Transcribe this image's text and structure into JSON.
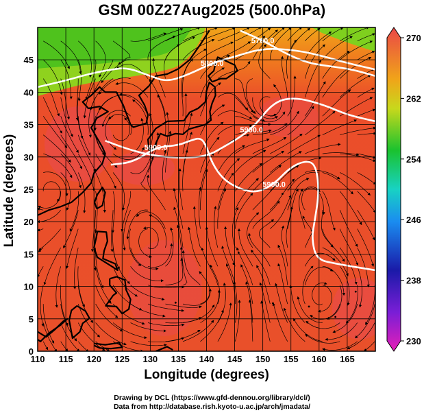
{
  "title": "GSM 00Z27Aug2025 (500.0hPa)",
  "xlabel": "Longitude (degrees)",
  "ylabel": "Latitude  (degrees)",
  "credits": [
    "Drawing by DCL (https://www.gfd-dennou.org/library/dcl/)",
    "Data from http://database.rish.kyoto-u.ac.jp/arch/jmadata/"
  ],
  "x_ticks": [
    "110",
    "115",
    "120",
    "125",
    "130",
    "135",
    "140",
    "145",
    "150",
    "155",
    "160",
    "165"
  ],
  "y_ticks": [
    "0",
    "5",
    "10",
    "15",
    "20",
    "25",
    "30",
    "35",
    "40",
    "45"
  ],
  "colorbar_ticks": [
    "230",
    "238",
    "246",
    "254",
    "262",
    "270"
  ],
  "contour_labels": [
    "5700.0",
    "5800.0",
    "5900.0",
    "5900.0",
    "5900.0"
  ],
  "chart_data": {
    "type": "heatmap",
    "title": "GSM 00Z27Aug2025 (500.0hPa)",
    "xlabel": "Longitude (degrees)",
    "ylabel": "Latitude  (degrees)",
    "xlim": [
      110,
      170
    ],
    "ylim": [
      0,
      50
    ],
    "colorbar": {
      "min": 230,
      "max": 270,
      "ticks": [
        230,
        238,
        246,
        254,
        262,
        270
      ]
    },
    "colors": {
      "warm_field": "#e8532a",
      "cool_field": "#4fc21d",
      "contour": "#ffffff",
      "coastline": "#000000"
    },
    "contours": [
      {
        "value": "5700.0",
        "points": [
          [
            146,
            49.5
          ],
          [
            150,
            48
          ],
          [
            154,
            46
          ],
          [
            158,
            44.5
          ],
          [
            162,
            44
          ],
          [
            166,
            43.5
          ],
          [
            170,
            42.5
          ]
        ]
      },
      {
        "value": "5800.0",
        "points": [
          [
            110,
            40.8
          ],
          [
            115,
            41.8
          ],
          [
            119,
            42.8
          ],
          [
            123,
            43.5
          ],
          [
            126,
            43.8
          ],
          [
            130,
            42.5
          ],
          [
            133,
            41.6
          ],
          [
            137,
            42.8
          ],
          [
            141,
            44.5
          ],
          [
            145,
            45.5
          ],
          [
            150,
            46.8
          ],
          [
            156,
            46.5
          ],
          [
            161,
            45.5
          ],
          [
            165,
            44.5
          ],
          [
            170,
            43.5
          ]
        ]
      },
      {
        "value": "5900.0",
        "points": [
          [
            122,
            32.5
          ],
          [
            126,
            31.2
          ],
          [
            130,
            30.3
          ],
          [
            135,
            29.8
          ],
          [
            140,
            30.1
          ],
          [
            143,
            31.5
          ],
          [
            148,
            34.2
          ],
          [
            152,
            38.6
          ],
          [
            156,
            39.2
          ],
          [
            161,
            38.0
          ],
          [
            165,
            36.5
          ],
          [
            170,
            35.5
          ]
        ]
      },
      {
        "value": "5900.0",
        "points": [
          [
            123,
            28.8
          ],
          [
            127,
            29.2
          ],
          [
            131,
            31.5
          ],
          [
            135,
            31.8
          ],
          [
            137,
            32.5
          ],
          [
            139,
            33.0
          ],
          [
            140,
            31.6
          ],
          [
            141,
            29.0
          ],
          [
            143,
            26.5
          ],
          [
            146,
            25.0
          ],
          [
            149,
            24.5
          ],
          [
            152,
            25.8
          ],
          [
            155,
            28.5
          ],
          [
            158,
            29.5
          ],
          [
            159.5,
            28.5
          ],
          [
            160,
            24.5
          ],
          [
            159.2,
            20.0
          ],
          [
            158.7,
            17.5
          ],
          [
            159.5,
            14.2
          ],
          [
            163,
            13.5
          ],
          [
            170,
            12.5
          ]
        ]
      }
    ],
    "streamlines": "dense field of black streamlines with arrowheads",
    "coastlines": "East Asia, Japan, Philippines and western Pacific islands"
  }
}
